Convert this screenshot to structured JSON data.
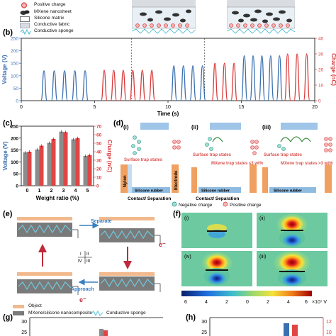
{
  "panel_a": {
    "legend": [
      {
        "icon": "positive-charge-icon",
        "label": "Positive charge"
      },
      {
        "icon": "mxene-nanosheet-icon",
        "label": "MXene nanosheet"
      },
      {
        "icon": "silicone-matrix-icon",
        "label": "Silicone matrix"
      },
      {
        "icon": "conductive-fabric-icon",
        "label": "Conductive fabric"
      },
      {
        "icon": "conductive-sponge-icon",
        "label": "Conductive sponge"
      }
    ]
  },
  "panel_b": {
    "label": "(b)",
    "xlabel": "Time (s)",
    "ylabel_left": "Voltage (V)",
    "ylabel_right": "Charge (nC)",
    "x_ticks": [
      "0",
      "5",
      "10",
      "15",
      "20"
    ],
    "y_ticks_left": [
      "0",
      "50",
      "100",
      "150",
      "200",
      "250"
    ],
    "y_ticks_right": [
      "0",
      "10",
      "20",
      "30",
      "40"
    ],
    "colors": {
      "voltage": "#3a6fb0",
      "charge": "#d93a3a"
    }
  },
  "panel_c": {
    "label": "(c)",
    "xlabel": "Weight ratio (%)",
    "ylabel_left": "Voltage (V)",
    "ylabel_right": "Charge (nC)",
    "colors": {
      "voltage": "#8c8c8c",
      "charge": "#e04545"
    }
  },
  "panel_d": {
    "label": "(d)",
    "subpanels": [
      {
        "id": "(i)",
        "states": "Surface trap states"
      },
      {
        "id": "(ii)",
        "states": "Surface trap states",
        "note": "MXene trap states ≤3 wt%"
      },
      {
        "id": "(iii)",
        "states": "Surface trap states",
        "note": "MXene trap states >3 wt%"
      }
    ],
    "nylon": "Nylon",
    "electrode": "Electrode",
    "rubber": "Silicone rubber",
    "contact": "Contact/ Separation",
    "legend_negative": "Negative charge",
    "legend_positive": "Positive charge"
  },
  "panel_e": {
    "label": "(e)",
    "separate": "Separate",
    "approach": "Approach",
    "electron": "e⁻",
    "quadrants": [
      "I",
      "II",
      "III",
      "IV"
    ],
    "legend": [
      {
        "label": "Object",
        "color": "#f2b98c"
      },
      {
        "label": "MXene/silicone nanocomposite",
        "color": "#7a7a7a"
      },
      {
        "label": "Conductive sponge",
        "color": "#6ecbe0"
      }
    ]
  },
  "panel_f": {
    "label": "(f)",
    "cells": [
      "(i)",
      "(ii)",
      "(iv)",
      "(iii)"
    ],
    "colorbar_ticks": [
      "6",
      "4",
      "2",
      "0",
      "2",
      "4",
      "6"
    ],
    "colorbar_unit": "×10⁷ V"
  },
  "panel_g": {
    "label": "(g)",
    "y_ticks": [
      "30",
      "25"
    ]
  },
  "panel_h": {
    "label": "(h)",
    "y_ticks_left": [
      "30",
      "25"
    ],
    "y_ticks_right": [
      "12",
      "10"
    ]
  },
  "chart_data": [
    {
      "type": "line",
      "panel": "b",
      "xlabel": "Time (s)",
      "ylabel": "Voltage (V) / Charge (nC)",
      "xlim": [
        0,
        20
      ],
      "ylim_voltage": [
        0,
        250
      ],
      "ylim_charge": [
        0,
        40
      ],
      "series": [
        {
          "axis": "voltage",
          "segment": 1,
          "peak_times": [
            1.55,
            2.25,
            2.95,
            3.65,
            4.35
          ],
          "peak": 120
        },
        {
          "axis": "charge",
          "segment": 1,
          "peak_times": [
            5.65,
            6.3,
            6.95,
            7.6,
            8.25,
            8.9
          ],
          "peak": 19.5
        },
        {
          "axis": "voltage",
          "segment": 2,
          "peak_times": [
            10.4,
            11.05,
            11.7,
            12.35
          ],
          "peak": 140
        },
        {
          "axis": "charge",
          "segment": 2,
          "peak_times": [
            13.2,
            13.85,
            14.5
          ],
          "peak": 24
        },
        {
          "axis": "voltage",
          "segment": 3,
          "peak_times": [
            15.2,
            15.8,
            16.4,
            17.0,
            17.6
          ],
          "peak": 180
        },
        {
          "axis": "charge",
          "segment": 3,
          "peak_times": [
            18.15,
            18.8,
            19.45
          ],
          "peak": 30
        }
      ]
    },
    {
      "type": "bar",
      "panel": "c",
      "xlabel": "Weight ratio (%)",
      "ylabel": "Voltage (V)",
      "categories": [
        "0",
        "1",
        "2",
        "3",
        "4",
        "5"
      ],
      "ylim": [
        0,
        250
      ],
      "y2lim": [
        0,
        70
      ],
      "y_ticks": [
        0,
        50,
        100,
        150,
        200,
        250
      ],
      "y2_ticks": [
        0,
        10,
        20,
        30,
        40,
        50,
        60,
        70
      ],
      "series": [
        {
          "name": "Voltage (V)",
          "axis": "left",
          "values": [
            140,
            152,
            180,
            227,
            195,
            125
          ]
        },
        {
          "name": "Charge (nC)",
          "axis": "right",
          "values": [
            40,
            47,
            55,
            63,
            56,
            36
          ]
        }
      ]
    }
  ]
}
